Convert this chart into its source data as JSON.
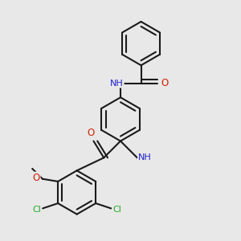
{
  "background_color": "#e8e8e8",
  "bond_color": "#1a1a1a",
  "atom_colors": {
    "N": "#2020cc",
    "O": "#cc2200",
    "Cl": "#22aa22",
    "C": "#1a1a1a",
    "H": "#555555"
  },
  "figsize": [
    3.0,
    3.0
  ],
  "dpi": 100
}
